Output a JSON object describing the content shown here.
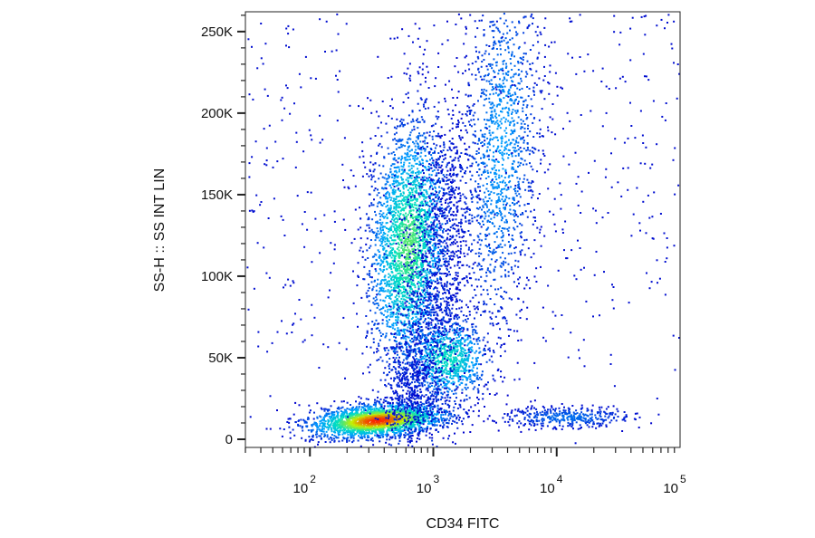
{
  "chart_data": {
    "type": "scatter",
    "title": "",
    "xlabel": "CD34 FITC",
    "ylabel": "SS-H :: SS INT LIN",
    "x_scale": "log",
    "y_scale": "linear",
    "xlim": [
      30,
      100000
    ],
    "ylim": [
      -5000,
      262144
    ],
    "grid": false,
    "legend": "none",
    "coloring": "density heatmap (blue → cyan → green → yellow → red)",
    "x_ticks": [
      {
        "base": "10",
        "exp": "2",
        "value": 100
      },
      {
        "base": "10",
        "exp": "3",
        "value": 1000
      },
      {
        "base": "10",
        "exp": "4",
        "value": 10000
      },
      {
        "base": "10",
        "exp": "5",
        "value": 100000
      }
    ],
    "y_ticks": [
      {
        "label": "0",
        "value": 0
      },
      {
        "label": "50K",
        "value": 50000
      },
      {
        "label": "100K",
        "value": 100000
      },
      {
        "label": "150K",
        "value": 150000
      },
      {
        "label": "200K",
        "value": 200000
      },
      {
        "label": "250K",
        "value": 250000
      }
    ],
    "populations": [
      {
        "x": 350,
        "y": 12000,
        "peak_density": "high"
      },
      {
        "x": 620,
        "y": 120000,
        "peak_density": "medium"
      },
      {
        "x": 1300,
        "y": 50000,
        "peak_density": "medium"
      },
      {
        "x": 3500,
        "y": 180000,
        "peak_density": "low"
      },
      {
        "x": 12000,
        "y": 14000,
        "peak_density": "low"
      }
    ],
    "colors": {
      "low": "#0000cc",
      "low_mid": "#00a0ff",
      "mid": "#00e0c0",
      "mid_high": "#c8f000",
      "high": "#ff1000"
    }
  }
}
